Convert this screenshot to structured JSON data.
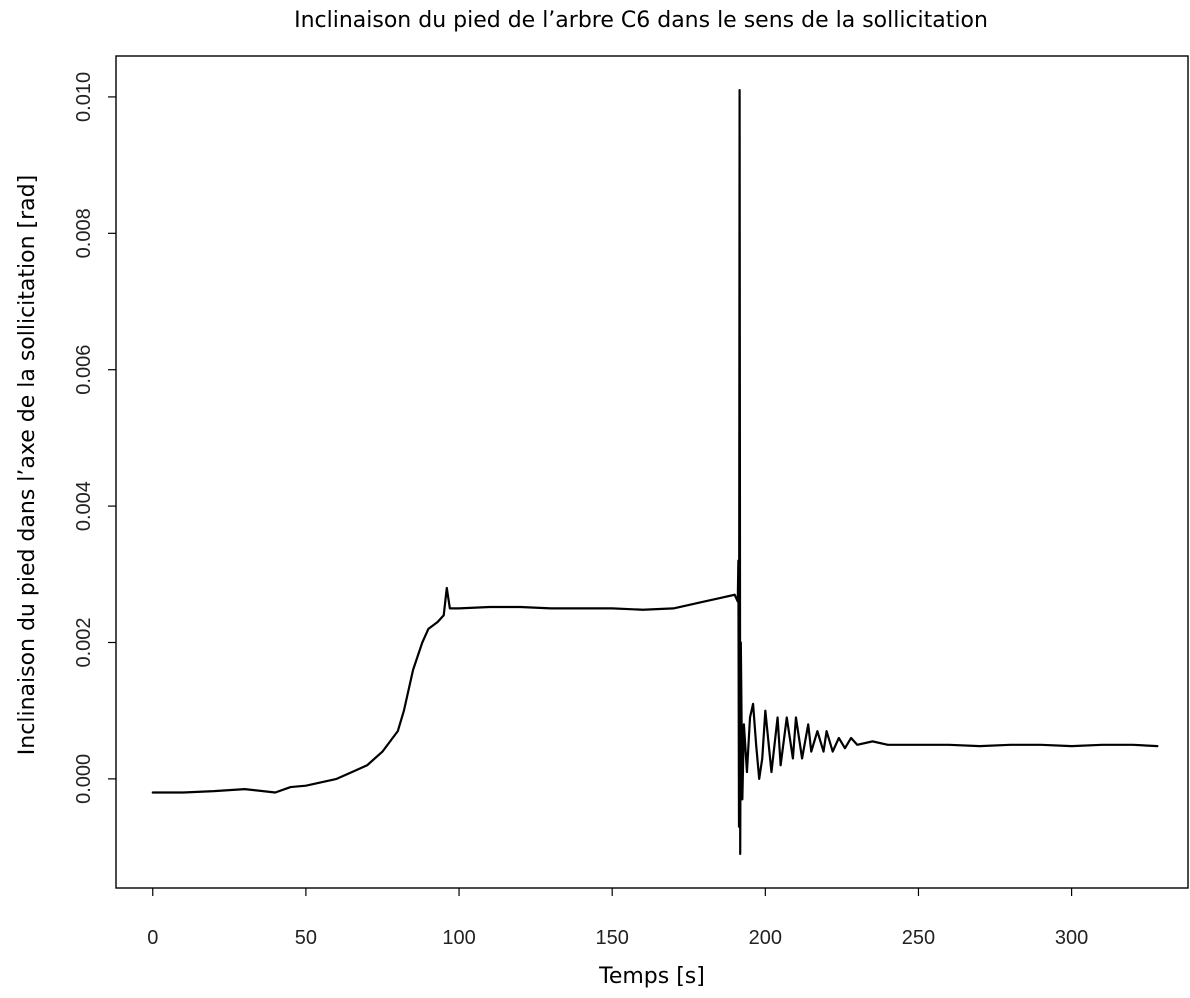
{
  "chart_data": {
    "type": "line",
    "title": "Inclinaison du pied de l’arbre C6 dans le sens de la sollicitation",
    "xlabel": "Temps [s]",
    "ylabel": "Inclinaison du pied dans l’axe de la sollicitation [rad]",
    "xlim": [
      -12,
      338
    ],
    "ylim": [
      -0.0016,
      0.0106
    ],
    "x_ticks": [
      0,
      50,
      100,
      150,
      200,
      250,
      300
    ],
    "x_tick_labels": [
      "0",
      "50",
      "100",
      "150",
      "200",
      "250",
      "300"
    ],
    "y_ticks": [
      0.0,
      0.002,
      0.004,
      0.006,
      0.008,
      0.01
    ],
    "y_tick_labels": [
      "0.000",
      "0.002",
      "0.004",
      "0.006",
      "0.008",
      "0.010"
    ],
    "grid": false,
    "line_color": "#000000",
    "series": [
      {
        "x": [
          0,
          10,
          20,
          30,
          40,
          45,
          50,
          55,
          60,
          65,
          70,
          75,
          80,
          82,
          85,
          88,
          90,
          93,
          95,
          96,
          97,
          100,
          110,
          120,
          130,
          140,
          150,
          160,
          170,
          180,
          185,
          190,
          191,
          191.2,
          191.4,
          191.6,
          191.8,
          192,
          192.5,
          193,
          194,
          195,
          196,
          197,
          198,
          199,
          200,
          202,
          204,
          205,
          207,
          209,
          210,
          212,
          214,
          215,
          217,
          219,
          220,
          222,
          224,
          226,
          228,
          230,
          235,
          240,
          250,
          260,
          270,
          280,
          290,
          300,
          310,
          320,
          328
        ],
        "y": [
          -0.0002,
          -0.0002,
          -0.00018,
          -0.00015,
          -0.0002,
          -0.00012,
          -0.0001,
          -5e-05,
          0.0,
          0.0001,
          0.0002,
          0.0004,
          0.0007,
          0.001,
          0.0016,
          0.002,
          0.0022,
          0.0023,
          0.0024,
          0.0028,
          0.0025,
          0.0025,
          0.00252,
          0.00252,
          0.0025,
          0.0025,
          0.0025,
          0.00248,
          0.0025,
          0.0026,
          0.00265,
          0.0027,
          0.0026,
          0.0032,
          -0.0007,
          0.0101,
          -0.0011,
          0.002,
          -0.0003,
          0.0008,
          0.0001,
          0.0009,
          0.0011,
          0.0005,
          0.0,
          0.0003,
          0.001,
          0.0001,
          0.0009,
          0.0002,
          0.0009,
          0.0003,
          0.0009,
          0.0003,
          0.0008,
          0.0004,
          0.0007,
          0.0004,
          0.0007,
          0.0004,
          0.0006,
          0.00045,
          0.0006,
          0.0005,
          0.00055,
          0.0005,
          0.0005,
          0.0005,
          0.00048,
          0.0005,
          0.0005,
          0.00048,
          0.0005,
          0.0005,
          0.00048
        ]
      }
    ]
  }
}
